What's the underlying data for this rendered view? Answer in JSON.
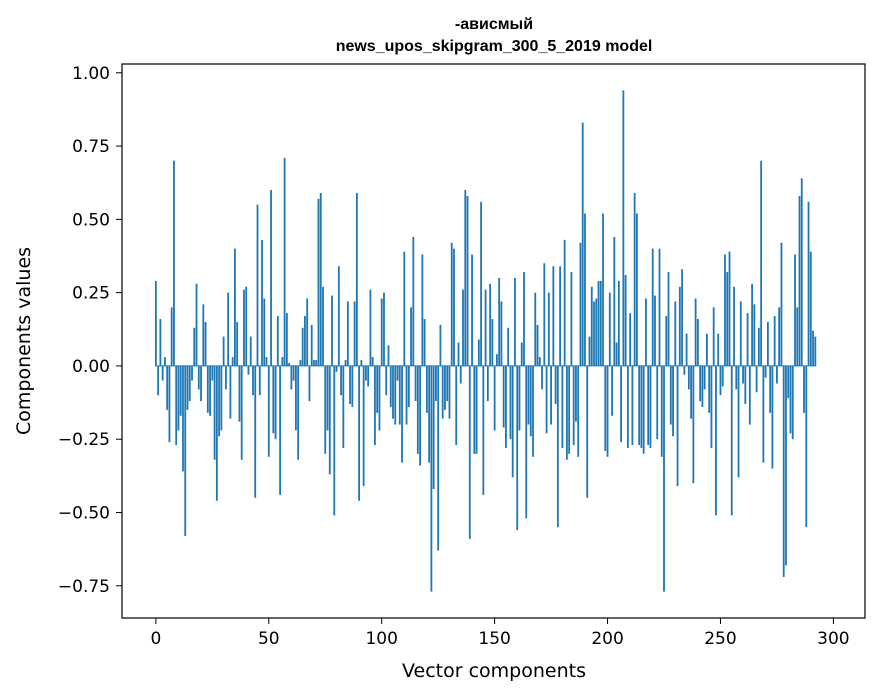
{
  "chart_data": {
    "type": "bar",
    "title": "-ависмый",
    "subtitle": "news_upos_skipgram_300_5_2019 model",
    "xlabel": "Vector components",
    "ylabel": "Components values",
    "xlim": [
      -15,
      314
    ],
    "ylim": [
      -0.86,
      1.03
    ],
    "xticks": [
      0,
      50,
      100,
      150,
      200,
      250,
      300
    ],
    "yticks": [
      1.0,
      0.75,
      0.5,
      0.25,
      0.0,
      -0.25,
      -0.5,
      -0.75
    ],
    "ytick_labels": [
      "1.00",
      "0.75",
      "0.50",
      "0.25",
      "0.00",
      "−0.25",
      "−0.50",
      "−0.75"
    ],
    "grid": false,
    "bar_color": "#1f77b4",
    "x": "components 0-299",
    "values": [
      0.29,
      -0.1,
      0.16,
      -0.05,
      0.03,
      -0.15,
      -0.26,
      0.2,
      0.7,
      -0.27,
      -0.22,
      -0.17,
      -0.36,
      -0.58,
      -0.15,
      -0.12,
      -0.05,
      0.13,
      0.28,
      -0.08,
      -0.12,
      0.21,
      0.15,
      -0.16,
      -0.17,
      -0.05,
      -0.32,
      -0.46,
      -0.24,
      -0.22,
      0.1,
      -0.08,
      0.25,
      -0.18,
      0.03,
      0.4,
      0.15,
      -0.19,
      -0.32,
      0.26,
      0.27,
      -0.03,
      0.1,
      -0.1,
      -0.45,
      0.55,
      -0.1,
      0.43,
      0.23,
      0.03,
      -0.31,
      0.6,
      -0.23,
      -0.25,
      0.17,
      -0.44,
      0.03,
      0.71,
      0.18,
      0.01,
      -0.08,
      -0.05,
      -0.22,
      -0.32,
      0.02,
      0.13,
      0.17,
      0.23,
      -0.12,
      0.14,
      0.02,
      0.02,
      0.57,
      0.59,
      0.27,
      -0.3,
      -0.22,
      -0.37,
      0.24,
      -0.51,
      -0.02,
      0.34,
      -0.1,
      -0.28,
      0.02,
      0.22,
      -0.13,
      -0.14,
      0.22,
      0.59,
      -0.46,
      0.02,
      -0.41,
      -0.05,
      -0.07,
      0.26,
      0.03,
      -0.27,
      -0.16,
      -0.22,
      0.23,
      0.25,
      -0.1,
      0.07,
      -0.14,
      -0.18,
      -0.2,
      -0.05,
      -0.2,
      -0.33,
      0.39,
      -0.2,
      -0.14,
      0.2,
      0.44,
      -0.12,
      -0.3,
      -0.34,
      0.38,
      0.16,
      -0.16,
      -0.33,
      -0.77,
      -0.42,
      -0.12,
      -0.63,
      0.14,
      -0.18,
      -0.15,
      -0.12,
      -0.18,
      0.42,
      0.4,
      -0.27,
      0.08,
      -0.06,
      0.26,
      0.6,
      0.58,
      -0.59,
      0.38,
      -0.3,
      -0.3,
      0.09,
      0.56,
      -0.44,
      0.26,
      -0.12,
      0.28,
      0.16,
      -0.22,
      0.04,
      0.3,
      0.22,
      -0.21,
      -0.28,
      0.13,
      -0.25,
      -0.38,
      0.3,
      -0.56,
      -0.22,
      0.08,
      0.32,
      -0.52,
      -0.2,
      -0.24,
      -0.31,
      0.25,
      0.14,
      0.03,
      -0.08,
      0.35,
      -0.23,
      0.25,
      -0.2,
      0.34,
      -0.13,
      -0.55,
      0.34,
      -0.28,
      0.43,
      -0.32,
      -0.3,
      0.32,
      -0.27,
      -0.19,
      -0.31,
      0.42,
      0.83,
      0.52,
      -0.45,
      0.1,
      0.27,
      0.22,
      0.23,
      0.29,
      0.29,
      0.52,
      -0.29,
      -0.31,
      0.25,
      -0.17,
      0.44,
      0.08,
      0.29,
      -0.26,
      0.94,
      0.31,
      -0.28,
      0.18,
      -0.27,
      0.59,
      0.52,
      -0.27,
      -0.28,
      -0.3,
      0.23,
      -0.27,
      -0.28,
      0.4,
      0.24,
      -0.25,
      0.4,
      -0.31,
      -0.77,
      0.17,
      0.32,
      -0.2,
      -0.24,
      0.22,
      -0.41,
      0.27,
      0.33,
      -0.03,
      0.11,
      -0.08,
      -0.18,
      -0.4,
      0.23,
      0.16,
      -0.12,
      -0.14,
      -0.08,
      0.11,
      -0.16,
      -0.28,
      0.2,
      -0.51,
      0.11,
      -0.1,
      -0.07,
      0.38,
      0.32,
      0.39,
      -0.51,
      0.27,
      -0.08,
      -0.38,
      0.22,
      -0.06,
      -0.13,
      0.18,
      -0.2,
      0.28,
      0.21,
      -0.09,
      0.13,
      0.7,
      -0.33,
      -0.04,
      0.15,
      -0.16,
      -0.35,
      0.17,
      -0.06,
      0.2,
      0.42,
      -0.72,
      -0.68,
      -0.11,
      -0.23,
      -0.25,
      0.38,
      0.2,
      0.58,
      0.64,
      -0.16,
      -0.55,
      0.56,
      0.39,
      0.12,
      0.1
    ]
  }
}
